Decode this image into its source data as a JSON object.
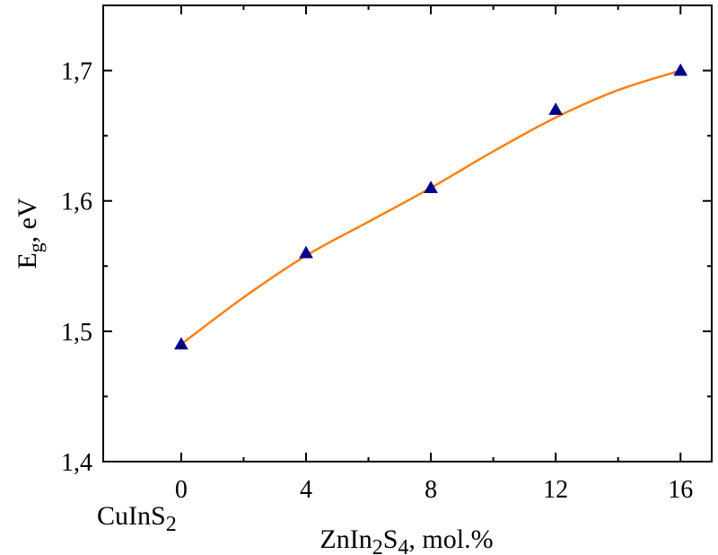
{
  "chart_data": {
    "type": "scatter",
    "title": "",
    "xlabel": "ZnIn₂S₄, mol.%",
    "xlabel_parts": {
      "pre": "ZnIn",
      "sub1": "2",
      "mid": "S",
      "sub2": "4",
      "post": ", mol.%"
    },
    "ylabel": "E_g, eV",
    "ylabel_parts": {
      "main": "E",
      "sub": "g",
      "post": ", eV"
    },
    "x_zero_label": "CuInS₂",
    "x_zero_label_parts": {
      "main": "CuInS",
      "sub": "2"
    },
    "xlim": [
      -2.5,
      17
    ],
    "ylim": [
      1.4,
      1.75
    ],
    "x_ticks": [
      0,
      4,
      8,
      12,
      16
    ],
    "x_tick_labels": [
      "0",
      "4",
      "8",
      "12",
      "16"
    ],
    "x_minor_ticks": [
      2,
      6,
      10,
      14
    ],
    "y_ticks": [
      1.4,
      1.5,
      1.6,
      1.7
    ],
    "y_tick_labels": [
      "1,4",
      "1,5",
      "1,6",
      "1,7"
    ],
    "y_minor_ticks": [
      1.45,
      1.55,
      1.65
    ],
    "grid": false,
    "series": [
      {
        "kind": "points",
        "marker": "triangle",
        "color": "#00008b",
        "x": [
          0,
          4,
          8,
          12,
          16
        ],
        "y": [
          1.49,
          1.56,
          1.61,
          1.67,
          1.7
        ]
      },
      {
        "kind": "fit-curve",
        "color": "#ff7f0e",
        "x": [
          0,
          2,
          4,
          6,
          8,
          10,
          12,
          14,
          16
        ],
        "y": [
          1.49,
          1.526,
          1.558,
          1.584,
          1.61,
          1.638,
          1.664,
          1.685,
          1.7
        ]
      }
    ]
  }
}
